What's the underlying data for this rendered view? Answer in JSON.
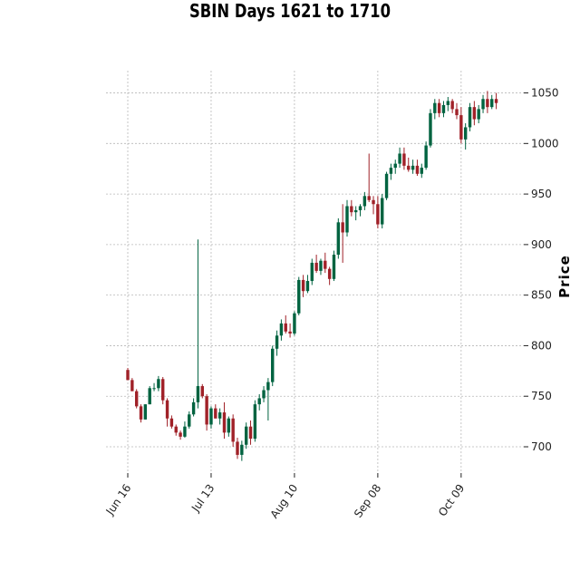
{
  "chart_data": {
    "type": "candlestick",
    "title": "SBIN Days 1621 to 1710",
    "ylabel": "Price",
    "xlabel": "",
    "ylim": [
      674,
      1072
    ],
    "yticks": [
      700,
      750,
      800,
      850,
      900,
      950,
      1000,
      1050
    ],
    "y_tick_labels": [
      "700",
      "750",
      "800",
      "850",
      "900",
      "950",
      "1000",
      "1050"
    ],
    "x_ticks": [
      {
        "label": "Jun 16",
        "index": 0
      },
      {
        "label": "Jul 13",
        "index": 19
      },
      {
        "label": "Aug 10",
        "index": 38
      },
      {
        "label": "Sep 08",
        "index": 57
      },
      {
        "label": "Oct 09",
        "index": 76
      }
    ],
    "grid": true,
    "y_axis_side": "right",
    "colors": {
      "up": "#006340",
      "down": "#a02128"
    },
    "candles": [
      [
        776,
        778,
        766,
        766
      ],
      [
        766,
        768,
        755,
        755
      ],
      [
        755,
        757,
        738,
        740
      ],
      [
        740,
        742,
        724,
        727
      ],
      [
        727,
        742,
        727,
        742
      ],
      [
        742,
        760,
        742,
        758
      ],
      [
        758,
        763,
        755,
        758
      ],
      [
        758,
        770,
        755,
        767
      ],
      [
        767,
        769,
        742,
        746
      ],
      [
        746,
        748,
        720,
        728
      ],
      [
        728,
        731,
        718,
        720
      ],
      [
        720,
        722,
        711,
        714
      ],
      [
        714,
        716,
        707,
        710
      ],
      [
        710,
        725,
        709,
        720
      ],
      [
        720,
        735,
        718,
        732
      ],
      [
        732,
        748,
        730,
        744
      ],
      [
        744,
        905,
        738,
        760
      ],
      [
        760,
        762,
        748,
        750
      ],
      [
        750,
        752,
        716,
        722
      ],
      [
        722,
        740,
        718,
        738
      ],
      [
        738,
        742,
        728,
        728
      ],
      [
        728,
        738,
        722,
        734
      ],
      [
        734,
        744,
        708,
        714
      ],
      [
        714,
        730,
        710,
        728
      ],
      [
        728,
        732,
        700,
        705
      ],
      [
        705,
        709,
        688,
        692
      ],
      [
        692,
        706,
        686,
        702
      ],
      [
        702,
        724,
        698,
        720
      ],
      [
        720,
        726,
        702,
        708
      ],
      [
        708,
        746,
        705,
        742
      ],
      [
        742,
        752,
        736,
        748
      ],
      [
        748,
        760,
        744,
        756
      ],
      [
        756,
        768,
        726,
        764
      ],
      [
        764,
        800,
        760,
        797
      ],
      [
        797,
        815,
        790,
        810
      ],
      [
        810,
        826,
        805,
        822
      ],
      [
        822,
        830,
        812,
        814
      ],
      [
        814,
        822,
        808,
        812
      ],
      [
        812,
        834,
        810,
        832
      ],
      [
        832,
        868,
        830,
        865
      ],
      [
        865,
        870,
        848,
        854
      ],
      [
        854,
        870,
        852,
        864
      ],
      [
        864,
        886,
        860,
        882
      ],
      [
        882,
        890,
        872,
        874
      ],
      [
        874,
        886,
        870,
        884
      ],
      [
        884,
        892,
        872,
        876
      ],
      [
        876,
        878,
        860,
        866
      ],
      [
        866,
        894,
        864,
        890
      ],
      [
        890,
        926,
        886,
        922
      ],
      [
        922,
        940,
        882,
        912
      ],
      [
        912,
        944,
        908,
        938
      ],
      [
        938,
        944,
        928,
        932
      ],
      [
        932,
        938,
        924,
        934
      ],
      [
        934,
        940,
        928,
        938
      ],
      [
        938,
        952,
        934,
        948
      ],
      [
        948,
        990,
        942,
        944
      ],
      [
        944,
        948,
        930,
        940
      ],
      [
        940,
        948,
        916,
        920
      ],
      [
        920,
        950,
        916,
        946
      ],
      [
        946,
        972,
        944,
        970
      ],
      [
        970,
        980,
        964,
        976
      ],
      [
        976,
        984,
        970,
        980
      ],
      [
        980,
        996,
        976,
        990
      ],
      [
        990,
        996,
        974,
        978
      ],
      [
        978,
        986,
        972,
        974
      ],
      [
        974,
        984,
        970,
        978
      ],
      [
        978,
        984,
        968,
        970
      ],
      [
        970,
        980,
        966,
        976
      ],
      [
        976,
        1002,
        974,
        998
      ],
      [
        998,
        1034,
        996,
        1030
      ],
      [
        1030,
        1044,
        1024,
        1040
      ],
      [
        1040,
        1044,
        1026,
        1030
      ],
      [
        1030,
        1042,
        1026,
        1038
      ],
      [
        1038,
        1046,
        1032,
        1042
      ],
      [
        1042,
        1044,
        1030,
        1034
      ],
      [
        1034,
        1040,
        1024,
        1028
      ],
      [
        1028,
        1036,
        1000,
        1004
      ],
      [
        1004,
        1020,
        994,
        1016
      ],
      [
        1016,
        1040,
        1012,
        1036
      ],
      [
        1036,
        1042,
        1018,
        1024
      ],
      [
        1024,
        1038,
        1020,
        1034
      ],
      [
        1034,
        1048,
        1030,
        1044
      ],
      [
        1044,
        1052,
        1030,
        1036
      ],
      [
        1036,
        1048,
        1034,
        1044
      ],
      [
        1044,
        1050,
        1034,
        1040
      ]
    ]
  }
}
